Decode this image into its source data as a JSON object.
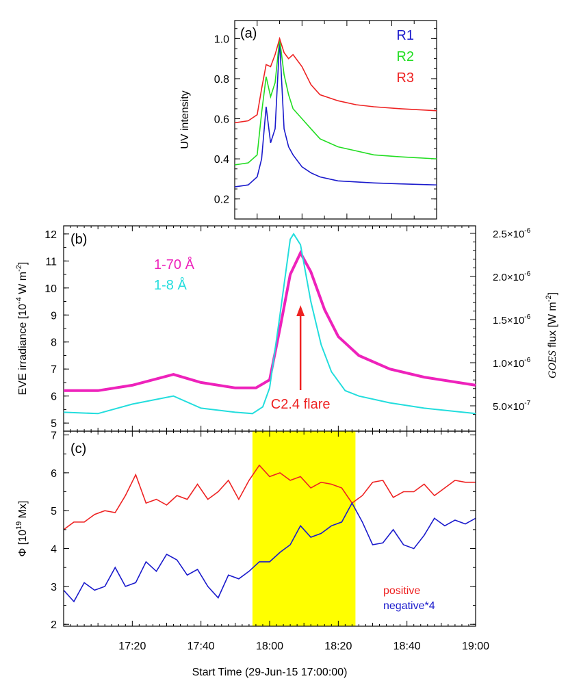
{
  "chart_data": [
    {
      "panel": "(a)",
      "type": "line",
      "ylabel": "UV intensity",
      "xlim": [
        "17:55",
        "18:40"
      ],
      "ylim": [
        0.1,
        1.09
      ],
      "yticks": [
        "0.2",
        "0.4",
        "0.6",
        "0.8",
        "1.0"
      ],
      "legend_position": "top-right",
      "series": [
        {
          "name": "R1",
          "color": "#1a1acc",
          "x": [
            "17:55",
            "17:58",
            "18:00",
            "18:01",
            "18:02",
            "18:03",
            "18:04",
            "18:05",
            "18:06",
            "18:07",
            "18:08",
            "18:10",
            "18:12",
            "18:14",
            "18:18",
            "18:22",
            "18:26",
            "18:32",
            "18:40"
          ],
          "y": [
            0.26,
            0.27,
            0.31,
            0.4,
            0.66,
            0.48,
            0.55,
            0.99,
            0.55,
            0.46,
            0.42,
            0.36,
            0.33,
            0.31,
            0.29,
            0.285,
            0.28,
            0.275,
            0.27
          ]
        },
        {
          "name": "R2",
          "color": "#22dd22",
          "x": [
            "17:55",
            "17:58",
            "18:00",
            "18:01",
            "18:02",
            "18:03",
            "18:04",
            "18:05",
            "18:06",
            "18:07",
            "18:08",
            "18:10",
            "18:12",
            "18:14",
            "18:18",
            "18:22",
            "18:26",
            "18:32",
            "18:40"
          ],
          "y": [
            0.37,
            0.38,
            0.42,
            0.63,
            0.81,
            0.71,
            0.78,
            1.0,
            0.82,
            0.72,
            0.65,
            0.6,
            0.55,
            0.5,
            0.46,
            0.44,
            0.42,
            0.41,
            0.4
          ]
        },
        {
          "name": "R3",
          "color": "#ee2222",
          "x": [
            "17:55",
            "17:58",
            "18:00",
            "18:01",
            "18:02",
            "18:03",
            "18:04",
            "18:05",
            "18:06",
            "18:07",
            "18:08",
            "18:10",
            "18:12",
            "18:14",
            "18:18",
            "18:22",
            "18:26",
            "18:32",
            "18:40"
          ],
          "y": [
            0.58,
            0.59,
            0.62,
            0.75,
            0.87,
            0.86,
            0.92,
            1.0,
            0.93,
            0.9,
            0.92,
            0.86,
            0.77,
            0.72,
            0.69,
            0.67,
            0.66,
            0.65,
            0.64
          ]
        }
      ]
    },
    {
      "panel": "(b)",
      "type": "line",
      "ylabel": "EVE irradiance [10⁻⁴ W m⁻²]",
      "ylabel_parts": {
        "pre": "EVE irradiance [10",
        "sup": "-4",
        "mid": " W m",
        "sup2": "-2",
        "post": "]"
      },
      "y2label": "GOES flux [W m⁻²]",
      "y2label_parts": {
        "ital": "GOES",
        "mid": " flux [W m",
        "sup": "-2",
        "post": "]"
      },
      "ylim": [
        4.7,
        12.3
      ],
      "yticks": [
        "5",
        "6",
        "7",
        "8",
        "9",
        "10",
        "11",
        "12"
      ],
      "y2ticks": [
        {
          "mant": "5.0×10",
          "exp": "-7",
          "value": 5e-07
        },
        {
          "mant": "1.0×10",
          "exp": "-6",
          "value": 1e-06
        },
        {
          "mant": "1.5×10",
          "exp": "-6",
          "value": 1.5e-06
        },
        {
          "mant": "2.0×10",
          "exp": "-6",
          "value": 2e-06
        },
        {
          "mant": "2.5×10",
          "exp": "-6",
          "value": 2.5e-06
        }
      ],
      "legend_position": "top-left",
      "annotation": "C2.4 flare",
      "annotation_x": "18:09",
      "series": [
        {
          "name": "1-70 Å",
          "color": "#ee22bb",
          "x": [
            "17:00",
            "17:10",
            "17:20",
            "17:32",
            "17:40",
            "17:50",
            "17:56",
            "18:00",
            "18:03",
            "18:06",
            "18:09",
            "18:12",
            "18:16",
            "18:20",
            "18:26",
            "18:35",
            "18:45",
            "19:00"
          ],
          "y": [
            6.2,
            6.2,
            6.4,
            6.8,
            6.5,
            6.3,
            6.3,
            6.6,
            8.5,
            10.5,
            11.3,
            10.6,
            9.2,
            8.2,
            7.5,
            7.0,
            6.7,
            6.4
          ]
        },
        {
          "name": "1-8 Å",
          "color": "#22dddd",
          "x": [
            "17:00",
            "17:10",
            "17:20",
            "17:32",
            "17:40",
            "17:50",
            "17:55",
            "17:58",
            "18:00",
            "18:03",
            "18:06",
            "18:07",
            "18:09",
            "18:12",
            "18:15",
            "18:18",
            "18:22",
            "18:26",
            "18:35",
            "18:45",
            "19:00"
          ],
          "y": [
            5.4,
            5.35,
            5.7,
            6.0,
            5.55,
            5.4,
            5.35,
            5.6,
            6.3,
            9.0,
            11.8,
            12.0,
            11.6,
            9.5,
            7.9,
            6.9,
            6.2,
            6.0,
            5.75,
            5.55,
            5.35
          ]
        }
      ]
    },
    {
      "panel": "(c)",
      "type": "line",
      "ylabel": "Φ [10¹⁹ Mx]",
      "ylabel_parts": {
        "pre": "Φ [10",
        "sup": "19",
        "post": " Mx]"
      },
      "xlabel": "Start Time (29-Jun-15 17:00:00)",
      "xlim": [
        "17:00",
        "19:00"
      ],
      "xticks": [
        "17:20",
        "17:40",
        "18:00",
        "18:20",
        "18:40",
        "19:00"
      ],
      "ylim": [
        1.95,
        7.1
      ],
      "yticks": [
        "2",
        "3",
        "4",
        "5",
        "6",
        "7"
      ],
      "highlight": {
        "from": "17:55",
        "to": "18:25",
        "color": "#ffff00"
      },
      "legend_position": "bottom-right",
      "series": [
        {
          "name": "positive",
          "color": "#ee2222",
          "x": [
            "17:00",
            "17:03",
            "17:06",
            "17:09",
            "17:12",
            "17:15",
            "17:18",
            "17:21",
            "17:24",
            "17:27",
            "17:30",
            "17:33",
            "17:36",
            "17:39",
            "17:42",
            "17:45",
            "17:48",
            "17:51",
            "17:54",
            "17:57",
            "18:00",
            "18:03",
            "18:06",
            "18:09",
            "18:12",
            "18:15",
            "18:18",
            "18:21",
            "18:24",
            "18:27",
            "18:30",
            "18:33",
            "18:36",
            "18:39",
            "18:42",
            "18:45",
            "18:48",
            "18:51",
            "18:54",
            "18:57",
            "19:00"
          ],
          "y": [
            4.5,
            4.7,
            4.7,
            4.9,
            5.0,
            4.95,
            5.4,
            5.95,
            5.2,
            5.3,
            5.15,
            5.4,
            5.3,
            5.7,
            5.3,
            5.5,
            5.8,
            5.3,
            5.8,
            6.2,
            5.9,
            6.0,
            5.8,
            5.9,
            5.6,
            5.75,
            5.7,
            5.6,
            5.2,
            5.4,
            5.75,
            5.8,
            5.35,
            5.5,
            5.5,
            5.7,
            5.4,
            5.6,
            5.8,
            5.75,
            5.75
          ]
        },
        {
          "name": "negative*4",
          "color": "#1a1acc",
          "x": [
            "17:00",
            "17:03",
            "17:06",
            "17:09",
            "17:12",
            "17:15",
            "17:18",
            "17:21",
            "17:24",
            "17:27",
            "17:30",
            "17:33",
            "17:36",
            "17:39",
            "17:42",
            "17:45",
            "17:48",
            "17:51",
            "17:54",
            "17:57",
            "18:00",
            "18:03",
            "18:06",
            "18:09",
            "18:12",
            "18:15",
            "18:18",
            "18:21",
            "18:24",
            "18:27",
            "18:30",
            "18:33",
            "18:36",
            "18:39",
            "18:42",
            "18:45",
            "18:48",
            "18:51",
            "18:54",
            "18:57",
            "19:00"
          ],
          "y": [
            2.9,
            2.6,
            3.1,
            2.9,
            3.0,
            3.5,
            3.0,
            3.1,
            3.65,
            3.4,
            3.85,
            3.7,
            3.3,
            3.45,
            3.0,
            2.7,
            3.3,
            3.2,
            3.4,
            3.65,
            3.65,
            3.9,
            4.1,
            4.6,
            4.3,
            4.4,
            4.6,
            4.7,
            5.2,
            4.7,
            4.1,
            4.15,
            4.5,
            4.1,
            4.0,
            4.35,
            4.8,
            4.6,
            4.75,
            4.65,
            4.8
          ]
        }
      ]
    }
  ]
}
